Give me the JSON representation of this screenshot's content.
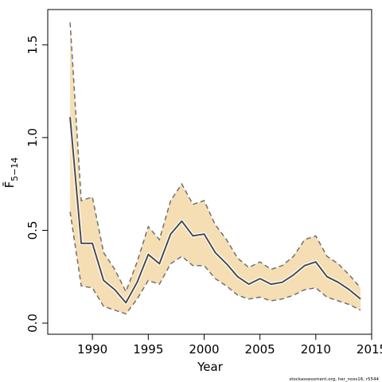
{
  "chart_data": {
    "type": "line",
    "x": [
      1988,
      1989,
      1990,
      1991,
      1992,
      1993,
      1994,
      1995,
      1996,
      1997,
      1998,
      1999,
      2000,
      2001,
      2002,
      2003,
      2004,
      2005,
      2006,
      2007,
      2008,
      2009,
      2010,
      2011,
      2012,
      2013,
      2014
    ],
    "series": [
      {
        "role": "estimate",
        "values": [
          1.11,
          0.43,
          0.43,
          0.23,
          0.18,
          0.11,
          0.22,
          0.37,
          0.32,
          0.48,
          0.55,
          0.47,
          0.48,
          0.38,
          0.32,
          0.25,
          0.21,
          0.24,
          0.21,
          0.22,
          0.26,
          0.31,
          0.33,
          0.25,
          0.22,
          0.18,
          0.13
        ]
      },
      {
        "role": "upper-bound",
        "values": [
          1.62,
          0.66,
          0.68,
          0.38,
          0.29,
          0.17,
          0.33,
          0.52,
          0.45,
          0.66,
          0.75,
          0.64,
          0.66,
          0.53,
          0.45,
          0.35,
          0.3,
          0.33,
          0.29,
          0.31,
          0.36,
          0.45,
          0.47,
          0.36,
          0.32,
          0.26,
          0.19
        ]
      },
      {
        "role": "lower-bound",
        "values": [
          0.6,
          0.2,
          0.19,
          0.09,
          0.07,
          0.05,
          0.13,
          0.23,
          0.21,
          0.32,
          0.36,
          0.31,
          0.31,
          0.24,
          0.2,
          0.15,
          0.13,
          0.14,
          0.12,
          0.13,
          0.15,
          0.18,
          0.19,
          0.14,
          0.12,
          0.1,
          0.07
        ]
      }
    ],
    "xlabel": "Year",
    "ylabel": "F̄",
    "ylabel_subscript": "5−14",
    "xlim": [
      1986,
      2015
    ],
    "ylim": [
      -0.06,
      1.69
    ],
    "xticks": [
      1990,
      1995,
      2000,
      2005,
      2010,
      2015
    ],
    "xtick_labels": [
      "1990",
      "1995",
      "2000",
      "2005",
      "2010",
      "2015"
    ],
    "yticks": [
      0.0,
      0.5,
      1.0,
      1.5
    ],
    "ytick_labels": [
      "0.0",
      "0.5",
      "1.0",
      "1.5"
    ],
    "grid": false,
    "legend": "none",
    "colors": {
      "band_fill": "#f5deb3",
      "band_edge": "#707070",
      "line": "#4a4a4a",
      "frame": "#000000"
    }
  },
  "credit": "stockassessment.org, her_noss16, r5544"
}
